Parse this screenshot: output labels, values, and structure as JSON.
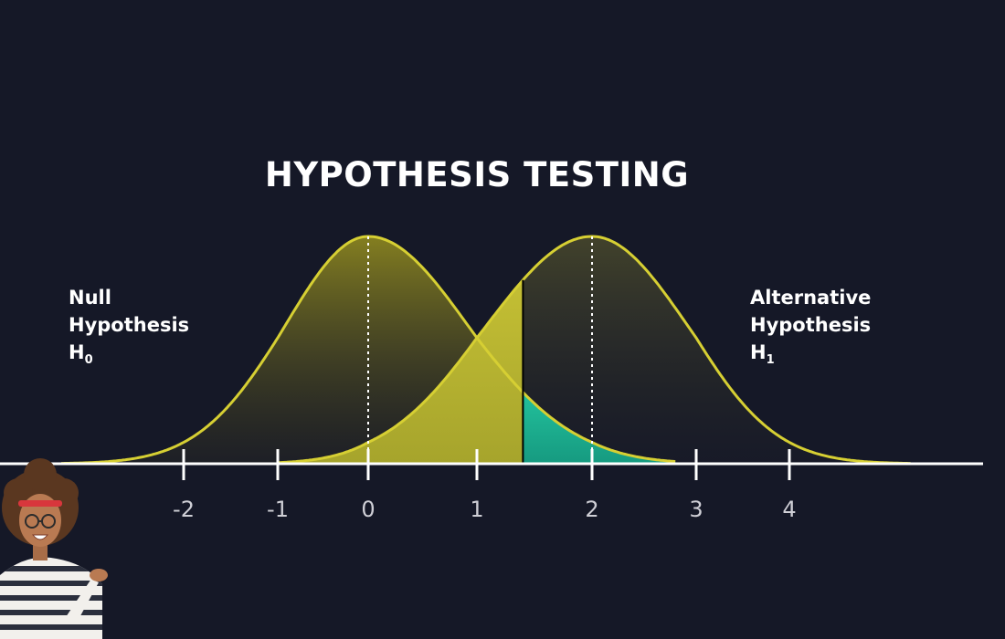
{
  "title": "HYPOTHESIS TESTING",
  "null_label": {
    "line1": "Null",
    "line2": "Hypothesis",
    "symbol": "H",
    "subscript": "0"
  },
  "alt_label": {
    "line1": "Alternative",
    "line2": "Hypothesis",
    "symbol": "H",
    "subscript": "1"
  },
  "axis": {
    "ticks": [
      "-2",
      "-1",
      "0",
      "1",
      "2",
      "3",
      "4"
    ]
  },
  "colors": {
    "background": "#151827",
    "curve": "#d6cf33",
    "shaded_region": "#b8b530",
    "power_region": "#1fb497",
    "axis": "#ffffff"
  },
  "distributions": {
    "null_mean": 0,
    "alternative_mean": 2,
    "critical_value": 1.4
  }
}
